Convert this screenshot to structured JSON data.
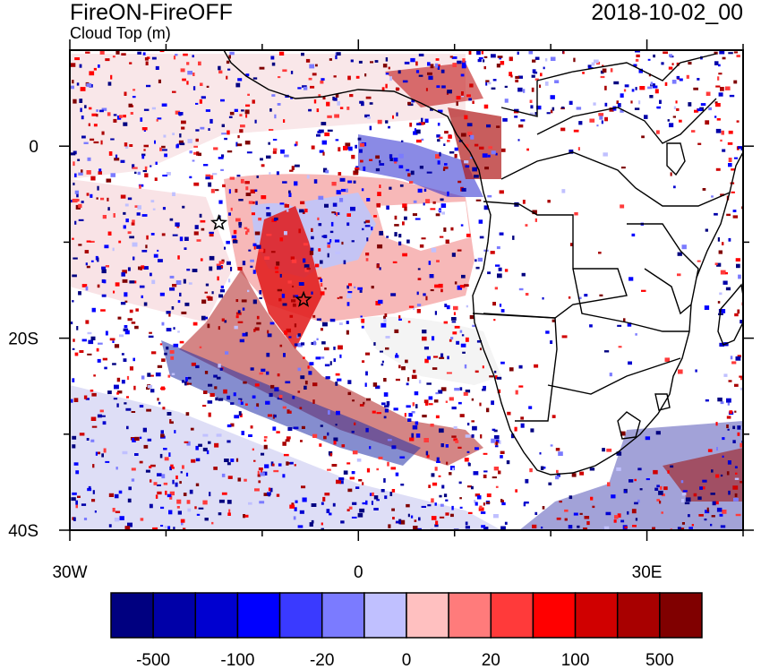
{
  "title": "FireON-FireOFF",
  "subtitle": "Cloud Top (m)",
  "time_stamp": "2018-10-02_00",
  "map": {
    "projection": "cylindrical equidistant",
    "lon_range": [
      -30,
      40
    ],
    "lat_range": [
      -40,
      10
    ],
    "x_ticks": [
      {
        "lon": -30,
        "label": "30W"
      },
      {
        "lon": 0,
        "label": "0"
      },
      {
        "lon": 30,
        "label": "30E"
      }
    ],
    "y_ticks": [
      {
        "lat": 0,
        "label": "0"
      },
      {
        "lat": -20,
        "label": "20S"
      },
      {
        "lat": -40,
        "label": "40S"
      }
    ],
    "minor_x_ticks": [
      -20,
      -10,
      10,
      20,
      40
    ],
    "minor_y_ticks": [
      -10,
      -30
    ],
    "markers": [
      {
        "name": "star",
        "lon": -14.5,
        "lat": -8
      },
      {
        "name": "star",
        "lon": -5.7,
        "lat": -16
      }
    ]
  },
  "colorbar": {
    "colors": [
      "#000080",
      "#0000a8",
      "#0000d0",
      "#0000ff",
      "#3a3aff",
      "#7b7bff",
      "#c0c0ff",
      "#ffc0c0",
      "#ff7b7b",
      "#ff3a3a",
      "#ff0000",
      "#d00000",
      "#a80000",
      "#800000"
    ],
    "labels": [
      "-500",
      "-100",
      "-20",
      "0",
      "20",
      "100",
      "500"
    ]
  }
}
